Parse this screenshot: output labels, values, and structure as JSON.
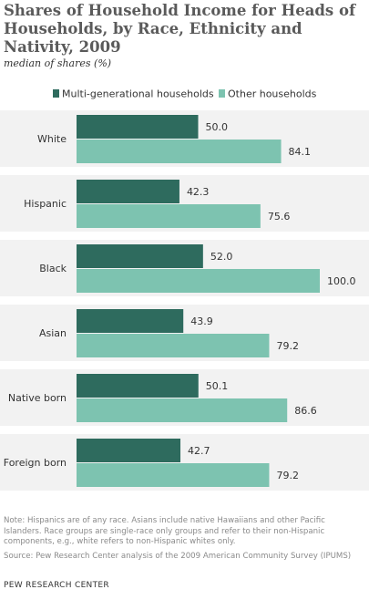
{
  "header": {
    "title": "Shares of Household Income for Heads of Households, by Race, Ethnicity and Nativity, 2009",
    "subtitle": "median of shares (%)"
  },
  "chart_data": {
    "type": "bar",
    "orientation": "horizontal",
    "categories": [
      "White",
      "Hispanic",
      "Black",
      "Asian",
      "Native born",
      "Foreign born"
    ],
    "series": [
      {
        "name": "Multi-generational households",
        "color": "#2e6b5e",
        "values": [
          50.0,
          42.3,
          52.0,
          43.9,
          50.1,
          42.7
        ]
      },
      {
        "name": "Other households",
        "color": "#7dc3b0",
        "values": [
          84.1,
          75.6,
          100.0,
          79.2,
          86.6,
          79.2
        ]
      }
    ],
    "value_labels": [
      [
        "50.0",
        "42.3",
        "52.0",
        "43.9",
        "50.1",
        "42.7"
      ],
      [
        "84.1",
        "75.6",
        "100.0",
        "79.2",
        "86.6",
        "79.2"
      ]
    ],
    "xlim": [
      0,
      100
    ],
    "legend": "top",
    "grid": false,
    "background_bands": "#f2f2f2"
  },
  "footer": {
    "note": "Note: Hispanics are of any race. Asians include native Hawaiians and other Pacific Islanders. Race groups are single-race only groups and refer to their non-Hispanic components, e.g., white refers to non-Hispanic whites only.",
    "source": "Source: Pew Research Center analysis of the 2009 American Community Survey (IPUMS)",
    "credit": "PEW RESEARCH CENTER"
  }
}
